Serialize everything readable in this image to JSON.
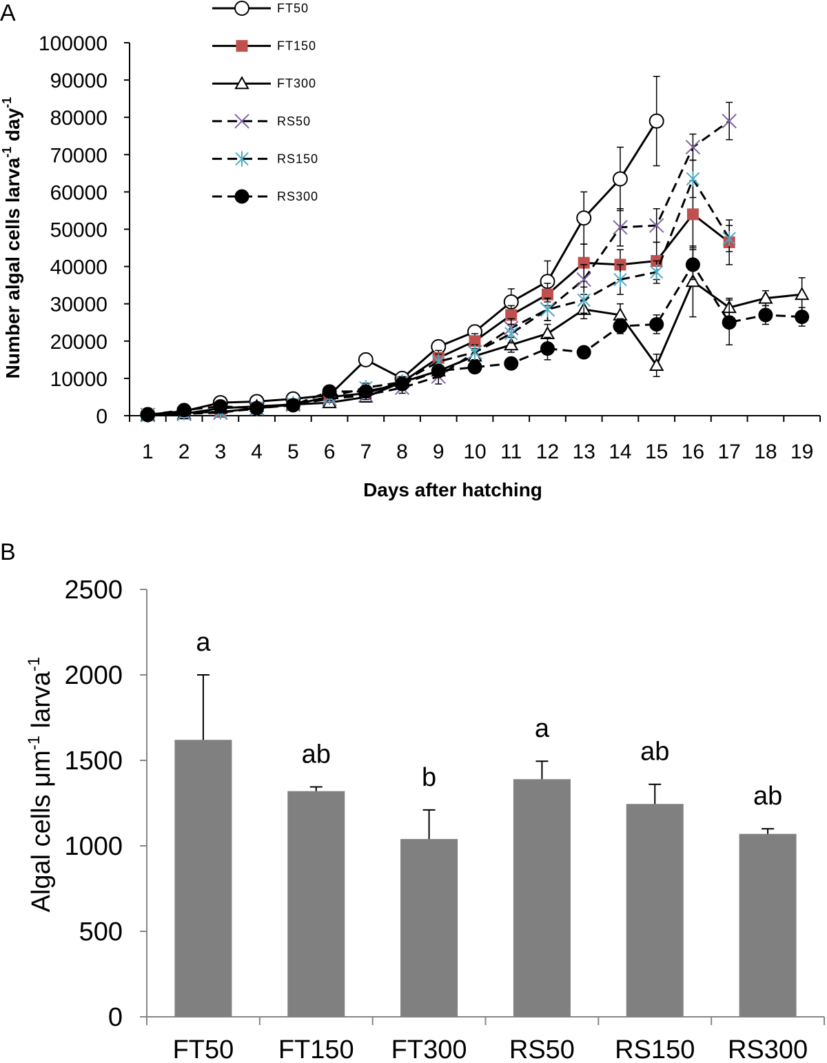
{
  "chart_data": [
    {
      "panel": "A",
      "type": "line",
      "xlabel": "Days after hatching",
      "ylabel": "Number algal cells larva-1 day-1",
      "ylabel_parts": [
        "Number algal cells larva",
        "-1",
        " day",
        "-1"
      ],
      "ylim": [
        0,
        100000
      ],
      "yticks": [
        0,
        10000,
        20000,
        30000,
        40000,
        50000,
        60000,
        70000,
        80000,
        90000,
        100000
      ],
      "x": [
        1,
        2,
        3,
        4,
        5,
        6,
        7,
        8,
        9,
        10,
        11,
        12,
        13,
        14,
        15,
        16,
        17,
        18,
        19
      ],
      "grid": false,
      "legend_position": "top-left",
      "series": [
        {
          "name": "FT50",
          "style": "solid",
          "marker": "open-circle",
          "color": "#000000",
          "values": [
            300,
            1200,
            3500,
            3800,
            4500,
            5500,
            15000,
            10000,
            18500,
            22500,
            30500,
            36000,
            53000,
            63500,
            79000,
            null,
            null,
            null,
            null
          ],
          "errors": [
            200,
            400,
            600,
            700,
            800,
            1000,
            1500,
            1500,
            1500,
            1500,
            3500,
            5500,
            7000,
            8500,
            12000,
            null,
            null,
            null,
            null
          ]
        },
        {
          "name": "FT150",
          "style": "solid",
          "marker": "filled-square",
          "color": "#c0504d",
          "values": [
            200,
            800,
            1000,
            2000,
            3000,
            5000,
            6000,
            9000,
            15500,
            20000,
            27000,
            32500,
            41000,
            40500,
            41500,
            54000,
            46500,
            null,
            null
          ],
          "errors": [
            200,
            300,
            500,
            600,
            700,
            900,
            1200,
            1500,
            2000,
            2000,
            2500,
            3000,
            5000,
            4000,
            5000,
            9000,
            6000,
            null,
            null
          ]
        },
        {
          "name": "FT300",
          "style": "solid",
          "marker": "open-triangle",
          "color": "#000000",
          "values": [
            100,
            500,
            2000,
            2500,
            3000,
            3500,
            5000,
            9000,
            12000,
            16000,
            19000,
            22000,
            28500,
            27000,
            13500,
            36000,
            29000,
            31500,
            32500
          ],
          "errors": [
            100,
            300,
            500,
            600,
            700,
            900,
            1000,
            1500,
            1500,
            1500,
            2000,
            2500,
            2500,
            3000,
            3000,
            9500,
            2500,
            2000,
            4500
          ]
        },
        {
          "name": "RS50",
          "style": "dashed",
          "marker": "x",
          "color": "#8064a2",
          "values": [
            200,
            500,
            800,
            2000,
            3000,
            4500,
            5500,
            7500,
            10500,
            17000,
            23500,
            28500,
            36500,
            50500,
            51000,
            72000,
            79000,
            null,
            null
          ],
          "errors": [
            200,
            300,
            400,
            600,
            700,
            900,
            1200,
            1500,
            2000,
            2000,
            2500,
            3000,
            4000,
            5000,
            4500,
            3500,
            5000,
            null,
            null
          ]
        },
        {
          "name": "RS150",
          "style": "dashed",
          "marker": "star",
          "color": "#4bacc6",
          "values": [
            100,
            800,
            1000,
            1800,
            3200,
            5000,
            7500,
            9000,
            14500,
            17000,
            22000,
            28500,
            31000,
            36500,
            38500,
            63500,
            47500,
            null,
            null
          ],
          "errors": [
            100,
            300,
            400,
            500,
            700,
            900,
            1200,
            1500,
            2000,
            2000,
            2500,
            3000,
            3500,
            4000,
            3000,
            5000,
            3500,
            null,
            null
          ]
        },
        {
          "name": "RS300",
          "style": "dashed",
          "marker": "filled-circle",
          "color": "#000000",
          "values": [
            200,
            1500,
            2500,
            2000,
            2800,
            6500,
            6500,
            8500,
            12000,
            13000,
            14000,
            18000,
            17000,
            24000,
            24500,
            40500,
            25000,
            27000,
            26500
          ],
          "errors": [
            200,
            300,
            400,
            500,
            600,
            900,
            1000,
            1000,
            1500,
            1500,
            1500,
            3000,
            1500,
            2000,
            2500,
            4000,
            6000,
            2500,
            2500
          ]
        }
      ]
    },
    {
      "panel": "B",
      "type": "bar",
      "ylabel": "Algal cells μm-1 larva-1",
      "ylabel_parts": [
        "Algal cells μm",
        "-1",
        " larva",
        "-1"
      ],
      "ylim": [
        0,
        2500
      ],
      "yticks": [
        0,
        500,
        1000,
        1500,
        2000,
        2500
      ],
      "categories": [
        "FT50",
        "FT150",
        "FT300",
        "RS50",
        "RS150",
        "RS300"
      ],
      "values": [
        1620,
        1320,
        1040,
        1390,
        1245,
        1070
      ],
      "errors": [
        380,
        25,
        170,
        105,
        115,
        30
      ],
      "significance_labels": [
        "a",
        "ab",
        "b",
        "a",
        "ab",
        "ab"
      ],
      "bar_color": "#808080",
      "grid": false
    }
  ]
}
